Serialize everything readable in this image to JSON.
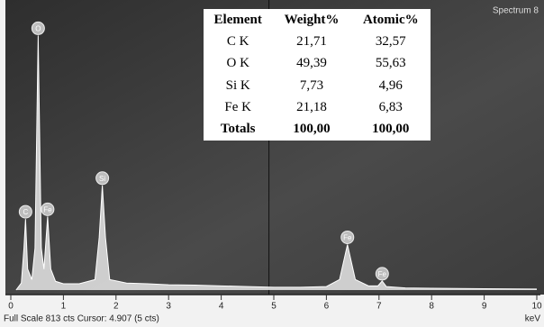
{
  "chart_data": {
    "type": "line",
    "spectrum_name": "Spectrum 8",
    "x_unit": "keV",
    "status": "Full Scale 813 cts Cursor: 4.907 (5 cts)",
    "series": [
      {
        "name": "Spectrum 8",
        "color": "#e6e6e6",
        "x": [
          0.1,
          0.2,
          0.25,
          0.28,
          0.32,
          0.4,
          0.46,
          0.52,
          0.58,
          0.63,
          0.7,
          0.76,
          0.85,
          1.0,
          1.3,
          1.6,
          1.68,
          1.74,
          1.8,
          1.88,
          2.2,
          2.6,
          3.0,
          3.5,
          4.0,
          4.5,
          5.0,
          5.5,
          6.0,
          6.25,
          6.4,
          6.55,
          6.8,
          6.98,
          7.06,
          7.14,
          7.5,
          8.0,
          9.0,
          10.0
        ],
        "values": [
          0,
          20,
          120,
          203,
          60,
          30,
          120,
          727,
          120,
          60,
          210,
          60,
          25,
          18,
          18,
          30,
          150,
          299,
          150,
          30,
          20,
          18,
          15,
          14,
          12,
          10,
          8,
          8,
          10,
          30,
          130,
          30,
          12,
          12,
          26,
          10,
          6,
          5,
          4,
          3
        ]
      }
    ],
    "peaks": [
      {
        "label": "C",
        "x": 0.28
      },
      {
        "label": "O",
        "x": 0.52
      },
      {
        "label": "Fe",
        "x": 0.7
      },
      {
        "label": "Si",
        "x": 1.74
      },
      {
        "label": "Fe",
        "x": 6.4
      },
      {
        "label": "Fe",
        "x": 7.06
      }
    ],
    "xlim": [
      0,
      10
    ],
    "xticks": [
      0,
      1,
      2,
      3,
      4,
      5,
      6,
      7,
      8,
      9,
      10
    ],
    "ylim": [
      0,
      813
    ]
  },
  "table": {
    "columns": [
      "Element",
      "Weight%",
      "Atomic%"
    ],
    "rows": [
      [
        "C K",
        "21,71",
        "32,57"
      ],
      [
        "O K",
        "49,39",
        "55,63"
      ],
      [
        "Si K",
        "7,73",
        "4,96"
      ],
      [
        "Fe K",
        "21,18",
        "6,83"
      ]
    ],
    "totals": [
      "Totals",
      "100,00",
      "100,00"
    ]
  }
}
